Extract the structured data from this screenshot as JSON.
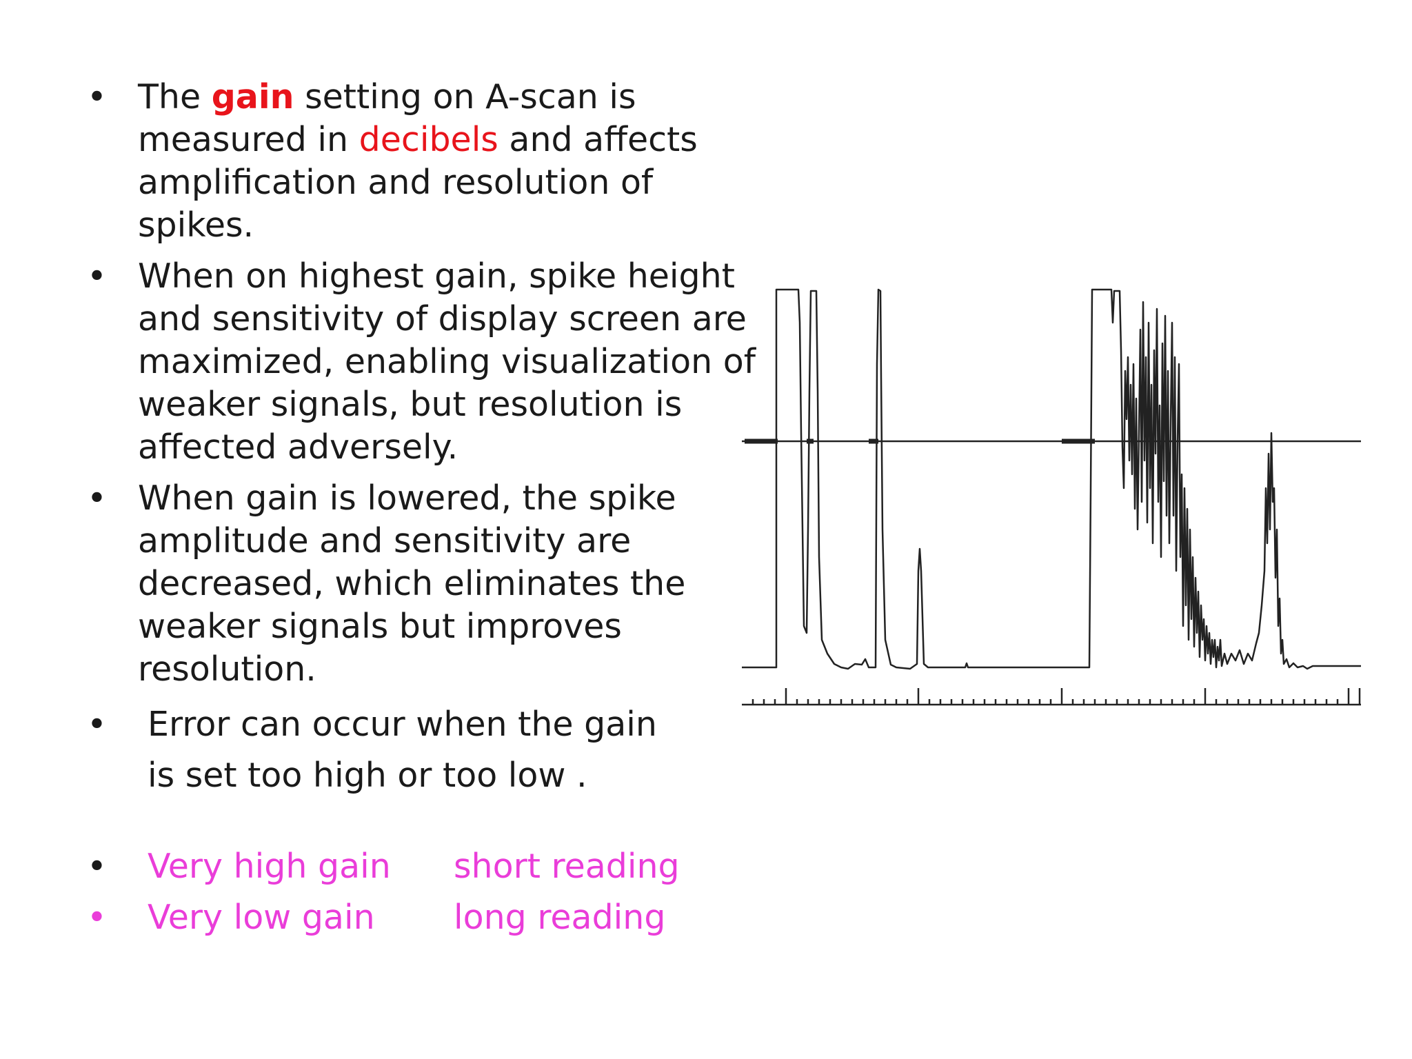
{
  "bullets": {
    "b1": {
      "pre": "The ",
      "gain": "gain",
      "mid": " setting on A-scan is measured in ",
      "decibels": "decibels",
      "post": " and affects amplification and resolution of spikes."
    },
    "b2": "When on highest gain, spike height and sensitivity of display screen are maximized, enabling visualization of weaker signals, but resolution is affected adversely.",
    "b3": "When gain is lowered, the spike amplitude and sensitivity are decreased, which eliminates the weaker signals but improves resolution.",
    "b4_line1": "Error can occur when the gain",
    "b4_line2": "is set too high or too low .",
    "b5": {
      "left": "Very high gain",
      "right": "short reading"
    },
    "b6": {
      "left": "Very low gain",
      "right": "long reading"
    }
  },
  "bullet_symbol": "•",
  "colors": {
    "highlight": "#e8141b",
    "pink": "#ea3dd9",
    "text": "#1a1a1a"
  }
}
